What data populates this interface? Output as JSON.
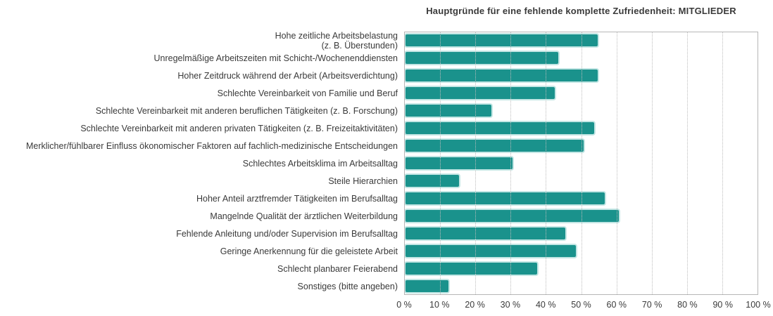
{
  "chart_data": {
    "type": "bar",
    "orientation": "horizontal",
    "title": "Hauptgründe für eine fehlende komplette Zufriedenheit: MITGLIEDER",
    "categories": [
      "Hohe zeitliche Arbeitsbelastung\n(z. B. Überstunden)",
      "Unregelmäßige Arbeitszeiten mit Schicht-/Wochenenddiensten",
      "Hoher Zeitdruck während der Arbeit (Arbeitsverdichtung)",
      "Schlechte Vereinbarkeit von Familie und Beruf",
      "Schlechte Vereinbarkeit mit anderen beruflichen Tätigkeiten (z. B. Forschung)",
      "Schlechte Vereinbarkeit mit anderen privaten Tätigkeiten (z. B. Freizeitaktivitäten)",
      "Merklicher/fühlbarer Einfluss ökonomischer Faktoren auf fachlich-medizinische Entscheidungen",
      "Schlechtes Arbeitsklima im Arbeitsalltag",
      "Steile Hierarchien",
      "Hoher Anteil arztfremder Tätigkeiten im Berufsalltag",
      "Mangelnde Qualität der ärztlichen Weiterbildung",
      "Fehlende Anleitung und/oder Supervision im Berufsalltag",
      "Geringe Anerkennung für die geleistete Arbeit",
      "Schlecht planbarer Feierabend",
      "Sonstiges (bitte angeben)"
    ],
    "values": [
      55,
      44,
      55,
      43,
      25,
      54,
      51,
      31,
      16,
      57,
      61,
      46,
      49,
      38,
      13
    ],
    "xlabel": "",
    "ylabel": "",
    "xlim": [
      0,
      100
    ],
    "x_ticks": [
      "0 %",
      "10 %",
      "20 %",
      "30 %",
      "40 %",
      "50 %",
      "60 %",
      "70 %",
      "80 %",
      "90 %",
      "100 %"
    ],
    "grid": "vertical-dotted",
    "legend": "none",
    "bar_color": "#1a928c",
    "bar_border_color": "#c3e6e4",
    "axis_text_color": "#3a3a3a",
    "plot_border_color": "#b7b7b7"
  }
}
